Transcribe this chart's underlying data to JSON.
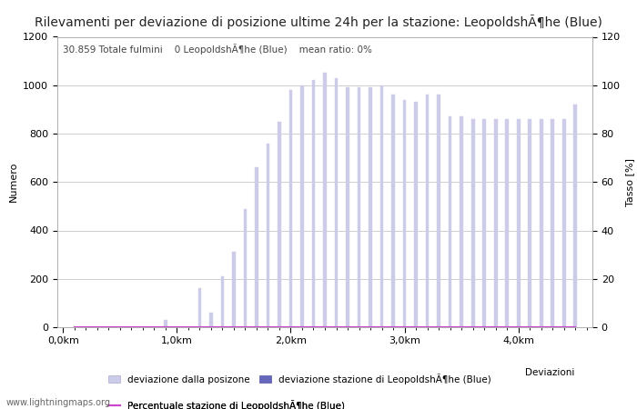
{
  "title": "Rilevamenti per deviazione di posizione ultime 24h per la stazione: LeopoldshÃ¶he (Blue)",
  "subtitle": "30.859 Totale fulmini    0 LeopoldshÃ¶he (Blue)    mean ratio: 0%",
  "ylabel_left": "Numero",
  "ylabel_right": "Tasso [%]",
  "ylim_left": [
    0,
    1200
  ],
  "ylim_right": [
    0,
    120
  ],
  "yticks_left": [
    0,
    200,
    400,
    600,
    800,
    1000,
    1200
  ],
  "yticks_right": [
    0,
    20,
    40,
    60,
    80,
    100,
    120
  ],
  "bar_positions": [
    0.1,
    0.2,
    0.3,
    0.4,
    0.5,
    0.6,
    0.7,
    0.8,
    0.9,
    1.0,
    1.1,
    1.2,
    1.3,
    1.4,
    1.5,
    1.6,
    1.7,
    1.8,
    1.9,
    2.0,
    2.1,
    2.2,
    2.3,
    2.4,
    2.5,
    2.6,
    2.7,
    2.8,
    2.9,
    3.0,
    3.1,
    3.2,
    3.3,
    3.4,
    3.5,
    3.6,
    3.7,
    3.8,
    3.9,
    4.0,
    4.1,
    4.2,
    4.3,
    4.4,
    4.5
  ],
  "bar_values": [
    0,
    0,
    0,
    0,
    0,
    0,
    0,
    0,
    30,
    0,
    0,
    160,
    60,
    210,
    310,
    490,
    660,
    760,
    850,
    980,
    1000,
    1020,
    1050,
    1030,
    990,
    990,
    990,
    1000,
    960,
    940,
    930,
    960,
    960,
    870,
    870,
    860,
    860,
    860,
    860,
    860,
    860,
    860,
    860,
    860,
    920
  ],
  "bar_color": "#cccce8",
  "bar_edge_color": "#cccce8",
  "dark_bar_color": "#6666bb",
  "dark_bar_edge_color": "#5555aa",
  "line_color": "#cc44cc",
  "line_values": [
    0,
    0,
    0,
    0,
    0,
    0,
    0,
    0,
    0,
    0,
    0,
    0,
    0,
    0,
    0,
    0,
    0,
    0,
    0,
    0,
    0,
    0,
    0,
    0,
    0,
    0,
    0,
    0,
    0,
    0,
    0,
    0,
    0,
    0,
    0,
    0,
    0,
    0,
    0,
    0,
    0,
    0,
    0,
    0,
    0
  ],
  "xticks": [
    0.0,
    1.0,
    2.0,
    3.0,
    4.0
  ],
  "xtick_labels": [
    "0,0km",
    "1,0km",
    "2,0km",
    "3,0km",
    "4,0km"
  ],
  "xlim": [
    -0.05,
    4.65
  ],
  "background_color": "#ffffff",
  "plot_bg_color": "#ffffff",
  "grid_color": "#bbbbbb",
  "legend_label_bar_light": "deviazione dalla posizone",
  "legend_label_bar_dark": "deviazione stazione di LeopoldshÃ¶he (Blue)",
  "legend_label_line": "Percentuale stazione di LeopoldshÃ¶he (Blue)",
  "legend_label_extra": "Deviazioni",
  "watermark": "www.lightningmaps.org",
  "title_fontsize": 10,
  "label_fontsize": 8,
  "tick_fontsize": 8,
  "subtitle_fontsize": 7.5,
  "bar_width": 0.03
}
